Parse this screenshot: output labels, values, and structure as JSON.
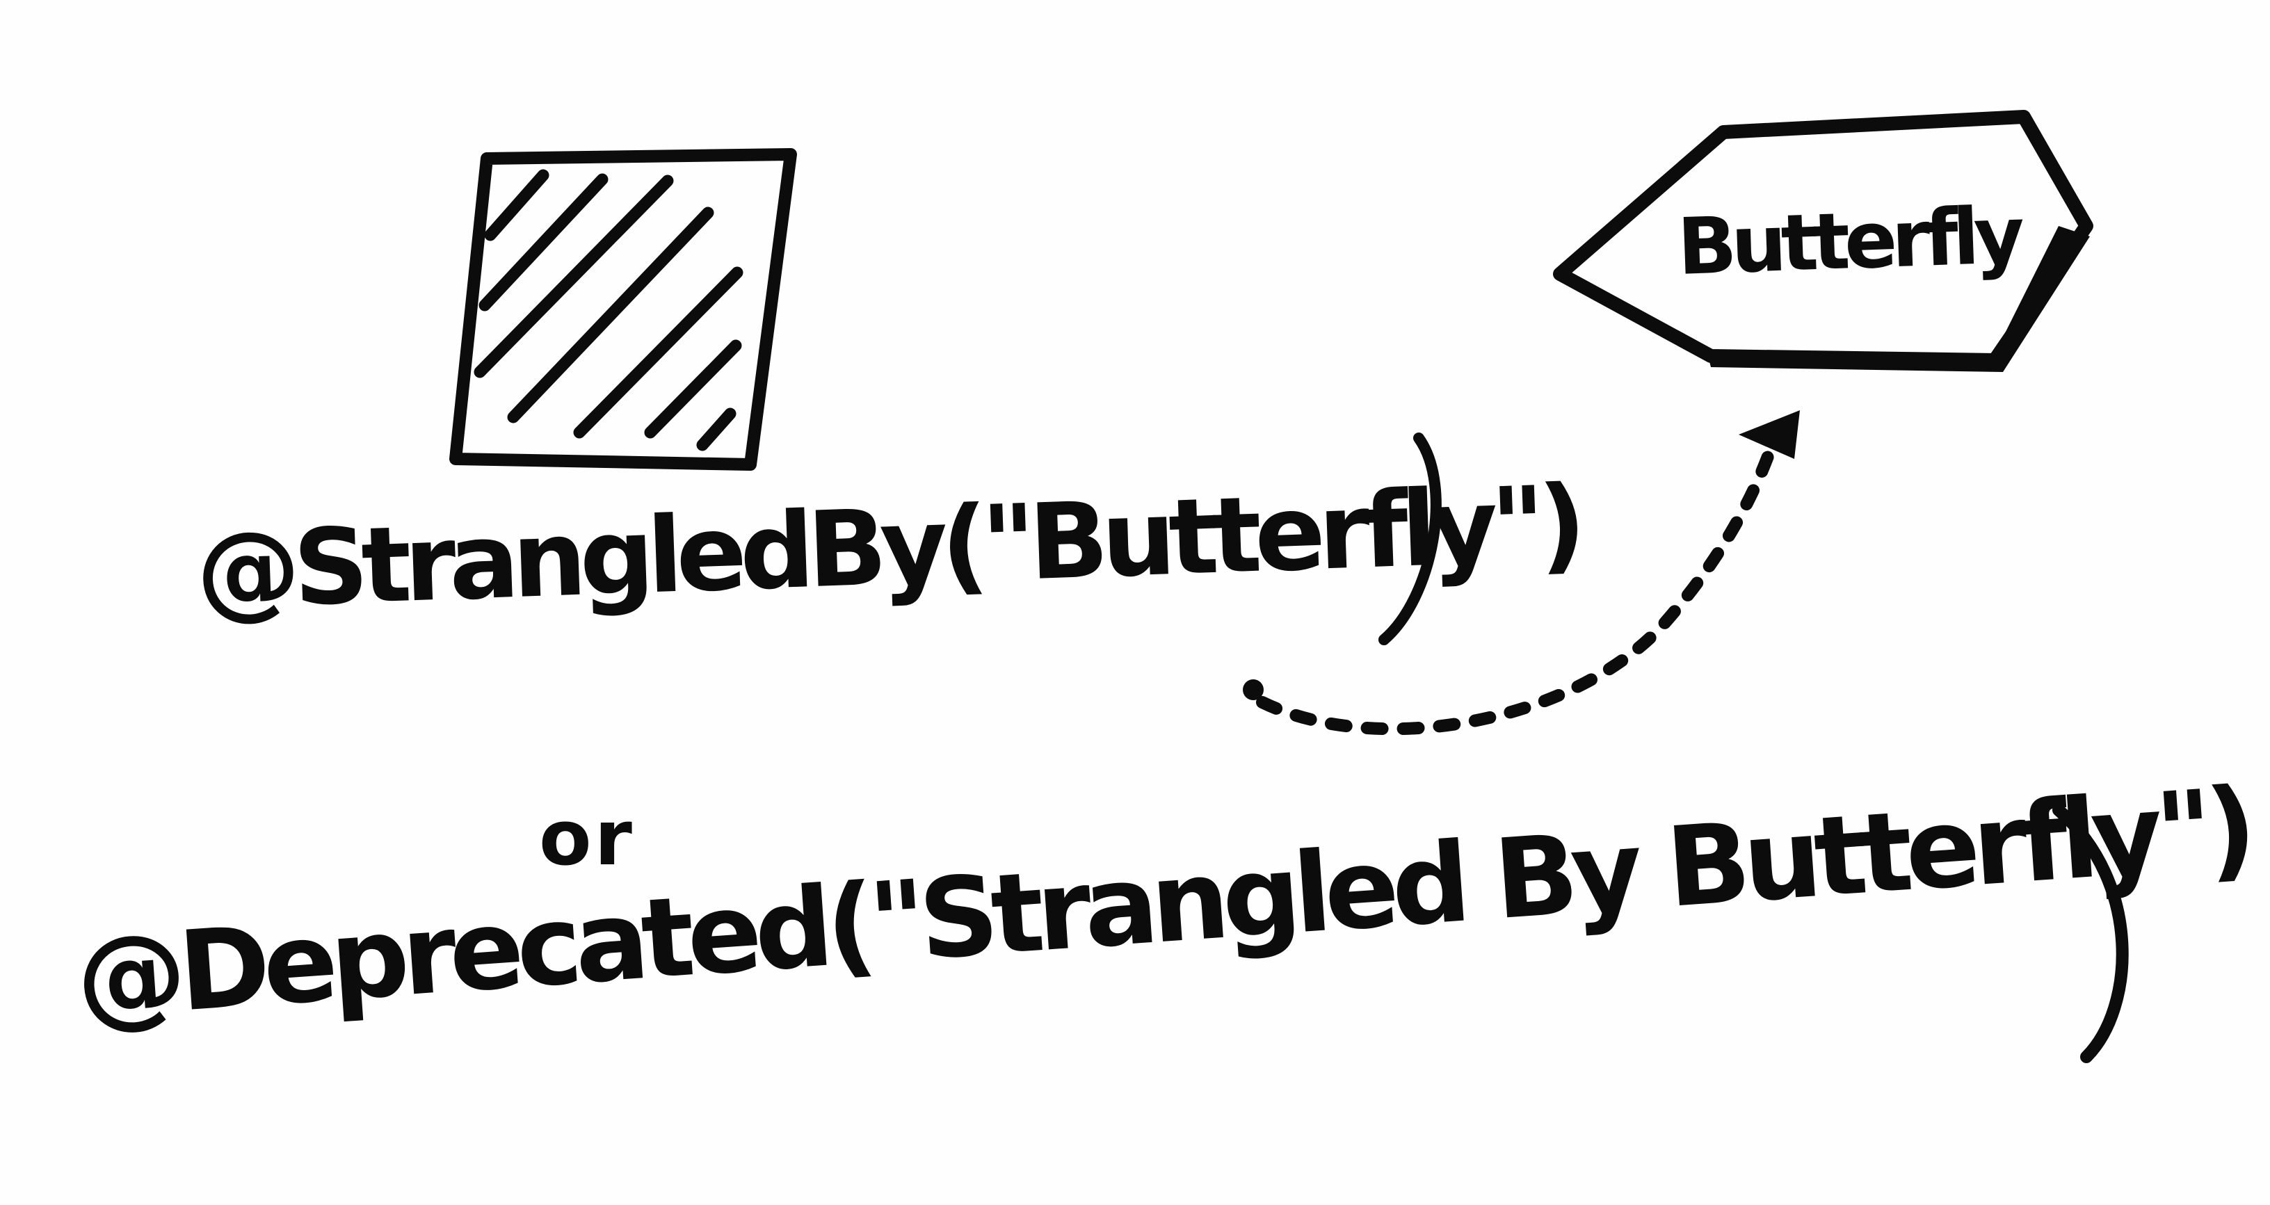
{
  "diagram": {
    "nodes": [
      {
        "id": "legacy",
        "shape": "hatched-square",
        "label": ""
      },
      {
        "id": "butterfly",
        "shape": "hexagon",
        "label": "Butterfly"
      }
    ],
    "edges": [
      {
        "from": "legacy-annotation",
        "to": "butterfly",
        "style": "dotted-arrow"
      }
    ],
    "annotations": {
      "strangled_by": "@StrangledBy(\"Butterfly\")",
      "or": "or",
      "deprecated": "@Deprecated(\"Strangled By Butterfly\")"
    }
  },
  "colors": {
    "ink": "#0c0c0c",
    "paper": "#fefefe"
  }
}
